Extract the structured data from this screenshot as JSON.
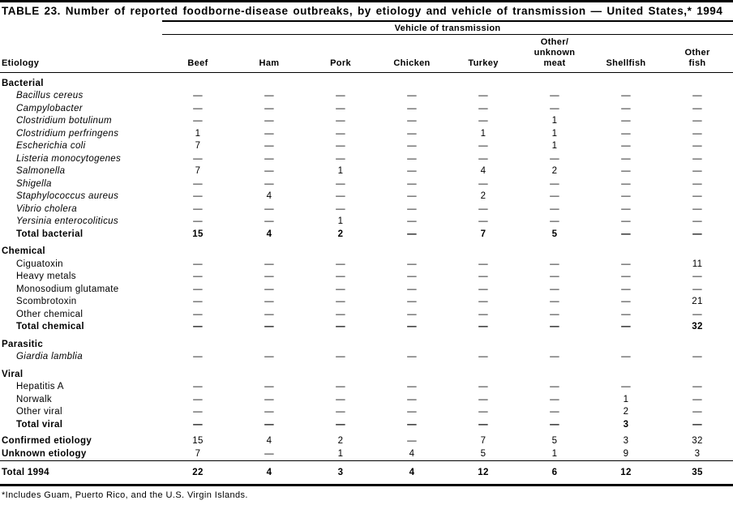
{
  "title": "TABLE 23. Number of reported foodborne-disease outbreaks, by etiology and vehicle of transmission — United States,* 1994",
  "footnote": "*Includes Guam, Puerto Rico, and the U.S. Virgin Islands.",
  "table": {
    "group_header": "Vehicle of transmission",
    "row_header": "Etiology",
    "columns": [
      "Beef",
      "Ham",
      "Pork",
      "Chicken",
      "Turkey",
      "Other/\nunknown\nmeat",
      "Shellfish",
      "Other\nfish"
    ],
    "rows": [
      {
        "kind": "section",
        "label": "Bacterial",
        "values": []
      },
      {
        "kind": "item-italic",
        "label": "Bacillus cereus",
        "values": [
          "—",
          "—",
          "—",
          "—",
          "—",
          "—",
          "—",
          "—"
        ]
      },
      {
        "kind": "item-italic",
        "label": "Campylobacter",
        "values": [
          "—",
          "—",
          "—",
          "—",
          "—",
          "—",
          "—",
          "—"
        ]
      },
      {
        "kind": "item-italic",
        "label": "Clostridium botulinum",
        "values": [
          "—",
          "—",
          "—",
          "—",
          "—",
          "1",
          "—",
          "—"
        ]
      },
      {
        "kind": "item-italic",
        "label": "Clostridium perfringens",
        "values": [
          "1",
          "—",
          "—",
          "—",
          "1",
          "1",
          "—",
          "—"
        ]
      },
      {
        "kind": "item-italic",
        "label": "Escherichia coli",
        "values": [
          "7",
          "—",
          "—",
          "—",
          "—",
          "1",
          "—",
          "—"
        ]
      },
      {
        "kind": "item-italic",
        "label": "Listeria monocytogenes",
        "values": [
          "—",
          "—",
          "—",
          "—",
          "—",
          "—",
          "—",
          "—"
        ]
      },
      {
        "kind": "item-italic",
        "label": "Salmonella",
        "values": [
          "7",
          "—",
          "1",
          "—",
          "4",
          "2",
          "—",
          "—"
        ]
      },
      {
        "kind": "item-italic",
        "label": "Shigella",
        "values": [
          "—",
          "—",
          "—",
          "—",
          "—",
          "—",
          "—",
          "—"
        ]
      },
      {
        "kind": "item-italic",
        "label": "Staphylococcus aureus",
        "values": [
          "—",
          "4",
          "—",
          "—",
          "2",
          "—",
          "—",
          "—"
        ]
      },
      {
        "kind": "item-italic",
        "label": "Vibrio cholera",
        "values": [
          "—",
          "—",
          "—",
          "—",
          "—",
          "—",
          "—",
          "—"
        ]
      },
      {
        "kind": "item-italic",
        "label": "Yersinia enterocoliticus",
        "values": [
          "—",
          "—",
          "1",
          "—",
          "—",
          "—",
          "—",
          "—"
        ]
      },
      {
        "kind": "total",
        "label": "Total bacterial",
        "values": [
          "15",
          "4",
          "2",
          "—",
          "7",
          "5",
          "—",
          "—"
        ]
      },
      {
        "kind": "section",
        "label": "Chemical",
        "values": []
      },
      {
        "kind": "item",
        "label": "Ciguatoxin",
        "values": [
          "—",
          "—",
          "—",
          "—",
          "—",
          "—",
          "—",
          "11"
        ]
      },
      {
        "kind": "item",
        "label": "Heavy metals",
        "values": [
          "—",
          "—",
          "—",
          "—",
          "—",
          "—",
          "—",
          "—"
        ]
      },
      {
        "kind": "item",
        "label": "Monosodium glutamate",
        "values": [
          "—",
          "—",
          "—",
          "—",
          "—",
          "—",
          "—",
          "—"
        ]
      },
      {
        "kind": "item",
        "label": "Scombrotoxin",
        "values": [
          "—",
          "—",
          "—",
          "—",
          "—",
          "—",
          "—",
          "21"
        ]
      },
      {
        "kind": "item",
        "label": "Other chemical",
        "values": [
          "—",
          "—",
          "—",
          "—",
          "—",
          "—",
          "—",
          "—"
        ]
      },
      {
        "kind": "total",
        "label": "Total chemical",
        "values": [
          "—",
          "—",
          "—",
          "—",
          "—",
          "—",
          "—",
          "32"
        ]
      },
      {
        "kind": "section",
        "label": "Parasitic",
        "values": []
      },
      {
        "kind": "item-italic",
        "label": "Giardia lamblia",
        "values": [
          "—",
          "—",
          "—",
          "—",
          "—",
          "—",
          "—",
          "—"
        ]
      },
      {
        "kind": "section",
        "label": "Viral",
        "values": []
      },
      {
        "kind": "item",
        "label": "Hepatitis A",
        "values": [
          "—",
          "—",
          "—",
          "—",
          "—",
          "—",
          "—",
          "—"
        ]
      },
      {
        "kind": "item",
        "label": "Norwalk",
        "values": [
          "—",
          "—",
          "—",
          "—",
          "—",
          "—",
          "1",
          "—"
        ]
      },
      {
        "kind": "item",
        "label": "Other viral",
        "values": [
          "—",
          "—",
          "—",
          "—",
          "—",
          "—",
          "2",
          "—"
        ]
      },
      {
        "kind": "total",
        "label": "Total viral",
        "values": [
          "—",
          "—",
          "—",
          "—",
          "—",
          "—",
          "3",
          "—"
        ]
      },
      {
        "kind": "summary",
        "label": "Confirmed etiology",
        "values": [
          "15",
          "4",
          "2",
          "—",
          "7",
          "5",
          "3",
          "32"
        ]
      },
      {
        "kind": "summary",
        "label": "Unknown etiology",
        "values": [
          "7",
          "—",
          "1",
          "4",
          "5",
          "1",
          "9",
          "3"
        ]
      },
      {
        "kind": "grand-total",
        "label": "Total 1994",
        "values": [
          "22",
          "4",
          "3",
          "4",
          "12",
          "6",
          "12",
          "35"
        ]
      }
    ]
  }
}
